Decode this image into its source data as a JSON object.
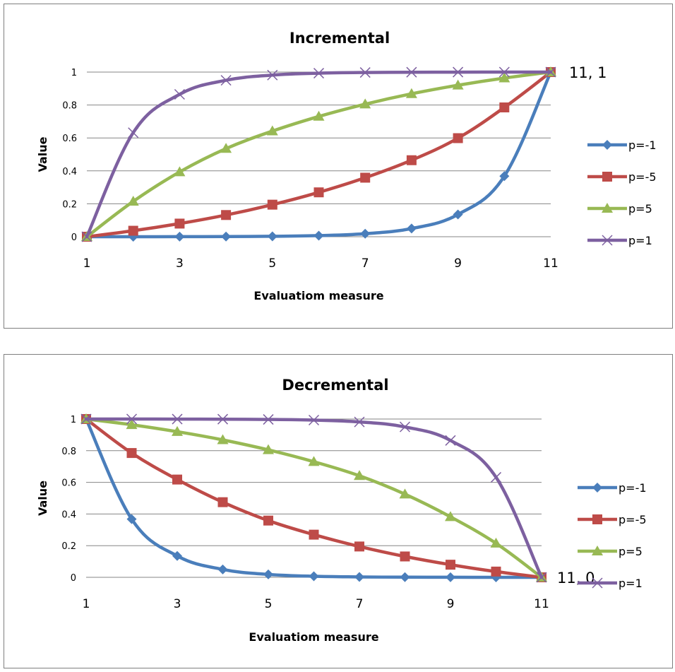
{
  "chart_data": [
    {
      "type": "line",
      "title": "Incremental",
      "xlabel": "Evaluatiom measure",
      "ylabel": "Value",
      "x": [
        1,
        2,
        3,
        4,
        5,
        6,
        7,
        8,
        9,
        10,
        11
      ],
      "xticks": [
        "1",
        "3",
        "5",
        "7",
        "9",
        "11"
      ],
      "yticks": [
        "0",
        "0.2",
        "0.4",
        "0.6",
        "0.8",
        "1"
      ],
      "xlim": [
        1,
        11
      ],
      "ylim": [
        0,
        1
      ],
      "grid": true,
      "legend_position": "right",
      "annotation": {
        "text": "11, 1",
        "x": 11,
        "y": 1
      },
      "series": [
        {
          "name": "p=-1",
          "color": "#4a7ebb",
          "marker": "diamond",
          "values": [
            0,
            0.0001,
            0.0003,
            0.0009,
            0.0024,
            0.0067,
            0.0183,
            0.0498,
            0.1353,
            0.3679,
            1
          ]
        },
        {
          "name": "p=-5",
          "color": "#be4b48",
          "marker": "square",
          "values": [
            0,
            0.0363,
            0.0797,
            0.1318,
            0.1947,
            0.2695,
            0.3585,
            0.4647,
            0.5987,
            0.7853,
            1
          ]
        },
        {
          "name": "p=5",
          "color": "#98b954",
          "marker": "triangle",
          "values": [
            0,
            0.2147,
            0.3935,
            0.5353,
            0.6415,
            0.7305,
            0.8053,
            0.8682,
            0.9203,
            0.9637,
            1
          ]
        },
        {
          "name": "p=1",
          "color": "#7d60a0",
          "marker": "x",
          "values": [
            0,
            0.6321,
            0.8647,
            0.9502,
            0.9817,
            0.9933,
            0.9975,
            0.9991,
            0.9997,
            0.9999,
            1
          ]
        }
      ]
    },
    {
      "type": "line",
      "title": "Decremental",
      "xlabel": "Evaluatiom measure",
      "ylabel": "Value",
      "x": [
        1,
        2,
        3,
        4,
        5,
        6,
        7,
        8,
        9,
        10,
        11
      ],
      "xticks": [
        "1",
        "3",
        "5",
        "7",
        "9",
        "11"
      ],
      "yticks": [
        "0",
        "0.2",
        "0.4",
        "0.6",
        "0.8",
        "1"
      ],
      "xlim": [
        1,
        11
      ],
      "ylim": [
        0,
        1
      ],
      "grid": true,
      "legend_position": "right",
      "annotation": {
        "text": "11, 0",
        "x": 11,
        "y": 0
      },
      "series": [
        {
          "name": "p=-1",
          "color": "#4a7ebb",
          "marker": "diamond",
          "values": [
            1,
            0.3679,
            0.1353,
            0.0498,
            0.0183,
            0.0067,
            0.0024,
            0.0009,
            0.0003,
            0.0001,
            0
          ]
        },
        {
          "name": "p=-5",
          "color": "#be4b48",
          "marker": "square",
          "values": [
            1,
            0.7853,
            0.6177,
            0.4747,
            0.3585,
            0.2695,
            0.1947,
            0.1318,
            0.0797,
            0.0363,
            0
          ]
        },
        {
          "name": "p=5",
          "color": "#98b954",
          "marker": "triangle",
          "values": [
            1,
            0.9637,
            0.9203,
            0.8682,
            0.8053,
            0.7305,
            0.6415,
            0.5253,
            0.3823,
            0.2147,
            0
          ]
        },
        {
          "name": "p=1",
          "color": "#7d60a0",
          "marker": "x",
          "values": [
            1,
            0.9999,
            0.9997,
            0.9991,
            0.9975,
            0.9933,
            0.9817,
            0.9502,
            0.8647,
            0.6321,
            0
          ]
        }
      ]
    }
  ]
}
